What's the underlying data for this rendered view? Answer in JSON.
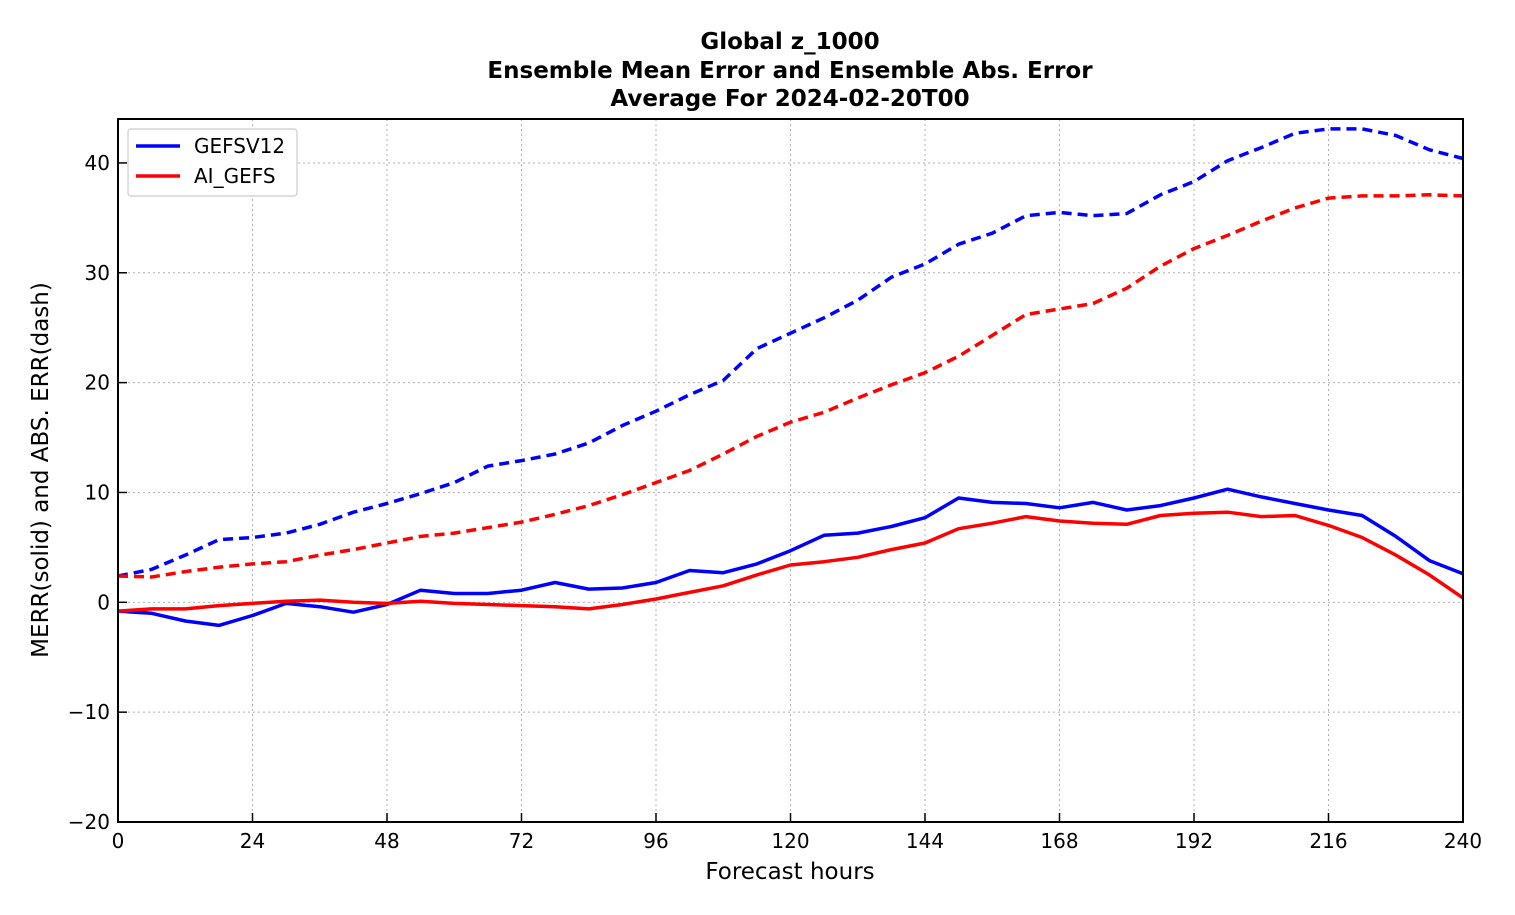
{
  "chart_data": {
    "type": "line",
    "title_lines": [
      "Global z_1000",
      "Ensemble Mean Error and Ensemble Abs. Error",
      "Average For 2024-02-20T00"
    ],
    "xlabel": "Forecast hours",
    "ylabel": "MERR(solid) and ABS. ERR(dash)",
    "xlim": [
      0,
      240
    ],
    "ylim": [
      -20,
      44
    ],
    "xticks": [
      0,
      24,
      48,
      72,
      96,
      120,
      144,
      168,
      192,
      216,
      240
    ],
    "yticks": [
      -20,
      -10,
      0,
      10,
      20,
      30,
      40
    ],
    "ytick_labels": [
      "−20",
      "−10",
      "0",
      "10",
      "20",
      "30",
      "40"
    ],
    "grid": true,
    "legend_position": "top-left",
    "x": [
      0,
      6,
      12,
      18,
      24,
      30,
      36,
      42,
      48,
      54,
      60,
      66,
      72,
      78,
      84,
      90,
      96,
      102,
      108,
      114,
      120,
      126,
      132,
      138,
      144,
      150,
      156,
      162,
      168,
      174,
      180,
      186,
      192,
      198,
      204,
      210,
      216,
      222,
      228,
      234,
      240
    ],
    "series": [
      {
        "name": "GEFSV12",
        "color": "#0000ff",
        "merr": [
          -0.8,
          -1.0,
          -1.7,
          -2.1,
          -1.2,
          -0.1,
          -0.4,
          -0.9,
          -0.2,
          1.1,
          0.8,
          0.8,
          1.1,
          1.8,
          1.2,
          1.3,
          1.8,
          2.9,
          2.7,
          3.5,
          4.7,
          6.1,
          6.3,
          6.9,
          7.7,
          9.5,
          9.1,
          9.0,
          8.6,
          9.1,
          8.4,
          8.8,
          9.5,
          10.3,
          9.6,
          9.0,
          8.4,
          7.9,
          6.0,
          3.8,
          2.6
        ],
        "abserr": [
          2.4,
          3.0,
          4.3,
          5.7,
          5.9,
          6.3,
          7.1,
          8.2,
          9.0,
          9.9,
          10.9,
          12.4,
          12.9,
          13.5,
          14.5,
          16.1,
          17.4,
          18.9,
          20.2,
          23.1,
          24.5,
          25.9,
          27.5,
          29.6,
          30.8,
          32.6,
          33.6,
          35.2,
          35.5,
          35.2,
          35.4,
          37.1,
          38.3,
          40.2,
          41.4,
          42.7,
          43.1,
          43.1,
          42.5,
          41.2,
          40.4
        ]
      },
      {
        "name": "AI_GEFS",
        "color": "#ff0000",
        "merr": [
          -0.8,
          -0.6,
          -0.6,
          -0.3,
          -0.1,
          0.1,
          0.2,
          0.0,
          -0.1,
          0.1,
          -0.1,
          -0.2,
          -0.3,
          -0.4,
          -0.6,
          -0.2,
          0.3,
          0.9,
          1.5,
          2.5,
          3.4,
          3.7,
          4.1,
          4.8,
          5.4,
          6.7,
          7.2,
          7.8,
          7.4,
          7.2,
          7.1,
          7.9,
          8.1,
          8.2,
          7.8,
          7.9,
          7.0,
          5.9,
          4.3,
          2.5,
          0.4
        ],
        "abserr": [
          2.4,
          2.3,
          2.8,
          3.2,
          3.5,
          3.7,
          4.3,
          4.8,
          5.4,
          6.0,
          6.3,
          6.8,
          7.3,
          8.0,
          8.8,
          9.8,
          10.9,
          12.0,
          13.5,
          15.1,
          16.4,
          17.3,
          18.6,
          19.8,
          20.9,
          22.4,
          24.3,
          26.2,
          26.7,
          27.2,
          28.6,
          30.6,
          32.2,
          33.4,
          34.7,
          35.9,
          36.8,
          37.0,
          37.0,
          37.1,
          37.0
        ]
      }
    ]
  }
}
